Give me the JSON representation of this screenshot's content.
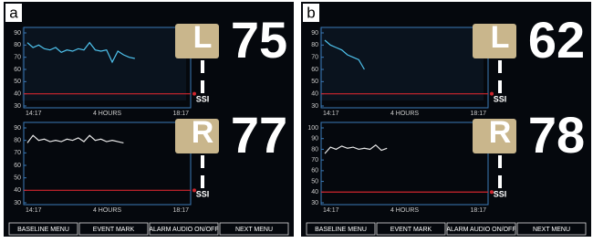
{
  "panels": [
    {
      "label": "a",
      "plots": [
        {
          "side": "L",
          "value": 75,
          "unit": "SSI",
          "ylim": [
            30,
            90
          ],
          "yticks": [
            30,
            40,
            50,
            60,
            70,
            80,
            90
          ],
          "alarm": 40,
          "xlabels": [
            "14:17",
            "4 HOURS",
            "18:17"
          ],
          "trace": [
            82,
            78,
            80,
            77,
            76,
            78,
            74,
            76,
            75,
            77,
            76,
            82,
            76,
            75,
            76,
            66,
            75,
            72,
            70,
            69
          ]
        },
        {
          "side": "R",
          "value": 77,
          "unit": "SSI",
          "ylim": [
            30,
            90
          ],
          "yticks": [
            30,
            40,
            50,
            60,
            70,
            80,
            90
          ],
          "alarm": 40,
          "xlabels": [
            "14:17",
            "4 HOURS",
            "18:17"
          ],
          "trace": [
            78,
            84,
            80,
            81,
            79,
            80,
            79,
            81,
            80,
            82,
            79,
            84,
            80,
            81,
            79,
            80,
            79,
            78
          ]
        }
      ],
      "menu": [
        "BASELINE MENU",
        "EVENT MARK",
        "ALARM AUDIO ON/OFF",
        "NEXT MENU"
      ]
    },
    {
      "label": "b",
      "plots": [
        {
          "side": "L",
          "value": 62,
          "unit": "SSI",
          "ylim": [
            30,
            90
          ],
          "yticks": [
            30,
            40,
            50,
            60,
            70,
            80,
            90
          ],
          "alarm": 40,
          "xlabels": [
            "14:17",
            "4 HOURS",
            "18:17"
          ],
          "trace": [
            84,
            80,
            78,
            76,
            72,
            70,
            68,
            60
          ]
        },
        {
          "side": "R",
          "value": 78,
          "unit": "SSI",
          "ylim": [
            30,
            100
          ],
          "yticks": [
            30,
            40,
            50,
            60,
            70,
            80,
            90,
            100
          ],
          "alarm": 40,
          "xlabels": [
            "14:17",
            "4 HOURS",
            "18:17"
          ],
          "trace": [
            76,
            82,
            80,
            83,
            81,
            82,
            80,
            81,
            80,
            84,
            79,
            81
          ]
        }
      ],
      "menu": [
        "BASELINE MENU",
        "EVENT MARK",
        "ALARM AUDIO ON/OFF",
        "NEXT MENU"
      ]
    }
  ]
}
